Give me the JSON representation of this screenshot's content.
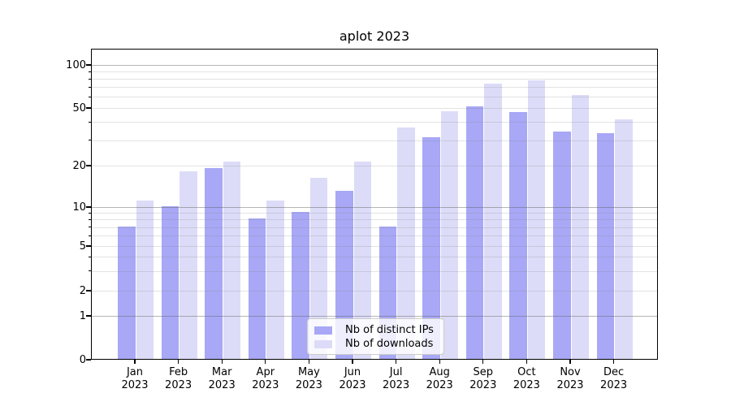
{
  "chart_data": {
    "type": "bar",
    "title": "aplot 2023",
    "months": [
      "Jan",
      "Feb",
      "Mar",
      "Apr",
      "May",
      "Jun",
      "Jul",
      "Aug",
      "Sep",
      "Oct",
      "Nov",
      "Dec"
    ],
    "year": "2023",
    "categories": [
      "Jan 2023",
      "Feb 2023",
      "Mar 2023",
      "Apr 2023",
      "May 2023",
      "Jun 2023",
      "Jul 2023",
      "Aug 2023",
      "Sep 2023",
      "Oct 2023",
      "Nov 2023",
      "Dec 2023"
    ],
    "series": [
      {
        "name": "Nb of distinct IPs",
        "color": "#a8a8f6",
        "values": [
          7,
          10,
          19,
          8,
          9,
          13,
          7,
          31,
          51,
          46,
          34,
          33
        ]
      },
      {
        "name": "Nb of downloads",
        "color": "#dcdcf8",
        "values": [
          11,
          18,
          21,
          11,
          16,
          21,
          36,
          47,
          73,
          77,
          61,
          41
        ]
      }
    ],
    "yscale": "symlog",
    "ylim": [
      0,
      130
    ],
    "ytick_values": [
      100,
      50,
      20,
      10,
      5,
      2,
      1,
      0
    ],
    "ytick_labels": [
      "100",
      "50",
      "20",
      "10",
      "5",
      "2",
      "1",
      "0"
    ],
    "major_gridlines": [
      1,
      10,
      100
    ],
    "minor_gridlines": [
      2,
      3,
      4,
      5,
      6,
      7,
      8,
      9,
      20,
      30,
      40,
      50,
      60,
      70,
      80,
      90
    ],
    "grid": true,
    "legend_position": "lower center",
    "xlabel": "",
    "ylabel": ""
  },
  "colors": {
    "background": "#ffffff",
    "axis": "#000000",
    "major_grid": "#b0b0b0",
    "minor_grid": "#e6e6e6",
    "legend_border": "#cccccc"
  }
}
